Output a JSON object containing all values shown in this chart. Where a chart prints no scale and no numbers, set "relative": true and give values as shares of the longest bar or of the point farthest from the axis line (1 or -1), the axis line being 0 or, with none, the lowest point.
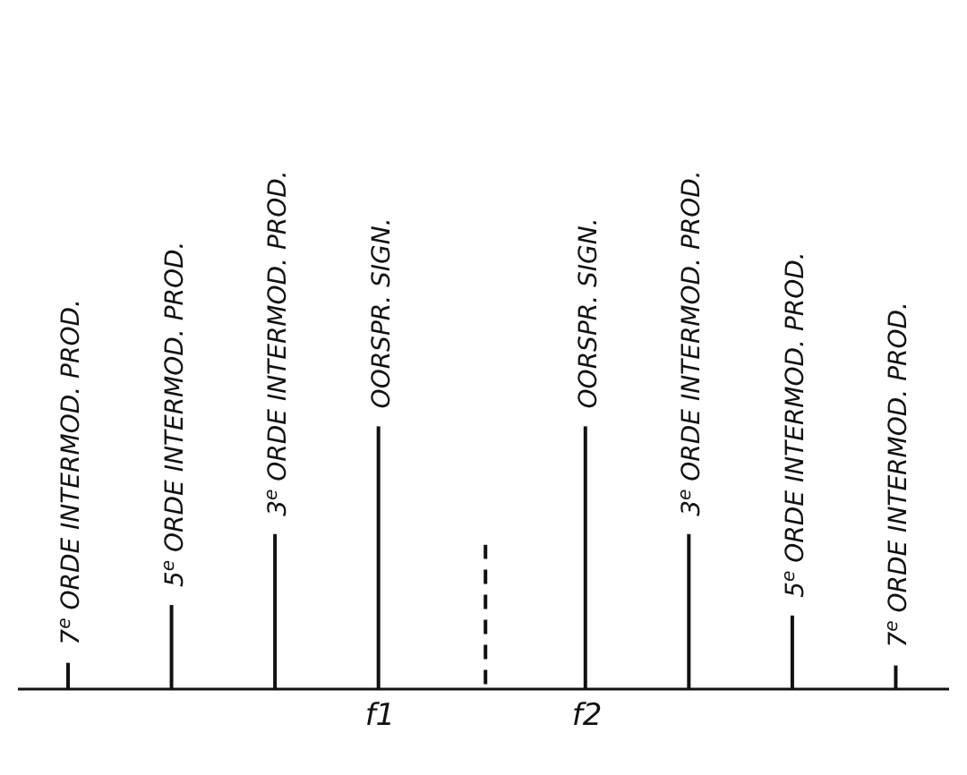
{
  "chart_data": {
    "type": "bar",
    "relative": true,
    "categories": [
      null,
      null,
      null,
      "f1",
      null,
      "f2",
      null,
      null,
      null
    ],
    "series": [
      {
        "color": "#111111",
        "values": [
          0.1,
          0.32,
          0.59,
          1,
          null,
          1,
          0.59,
          0.28,
          0.09
        ]
      },
      {
        "color": "#111111",
        "line_style": "dashed",
        "values": [
          null,
          null,
          null,
          null,
          0.55,
          null,
          null,
          null,
          null
        ]
      }
    ],
    "annotations": [
      "7$^{e}$ ORDE INTERMOD. PROD.",
      "5$^{e}$ ORDE INTERMOD. PROD.",
      "3$^{e}$ ORDE INTERMOD. PROD.",
      "OORSPR. SIGN.",
      "OORSPR. SIGN.",
      "3$^{e}$ ORDE INTERMOD. PROD.",
      "5$^{e}$ ORDE INTERMOD. PROD.",
      "7$^{e}$ ORDE INTERMOD. PROD."
    ],
    "grid": false,
    "legend": false,
    "tick_labels": "x"
  }
}
